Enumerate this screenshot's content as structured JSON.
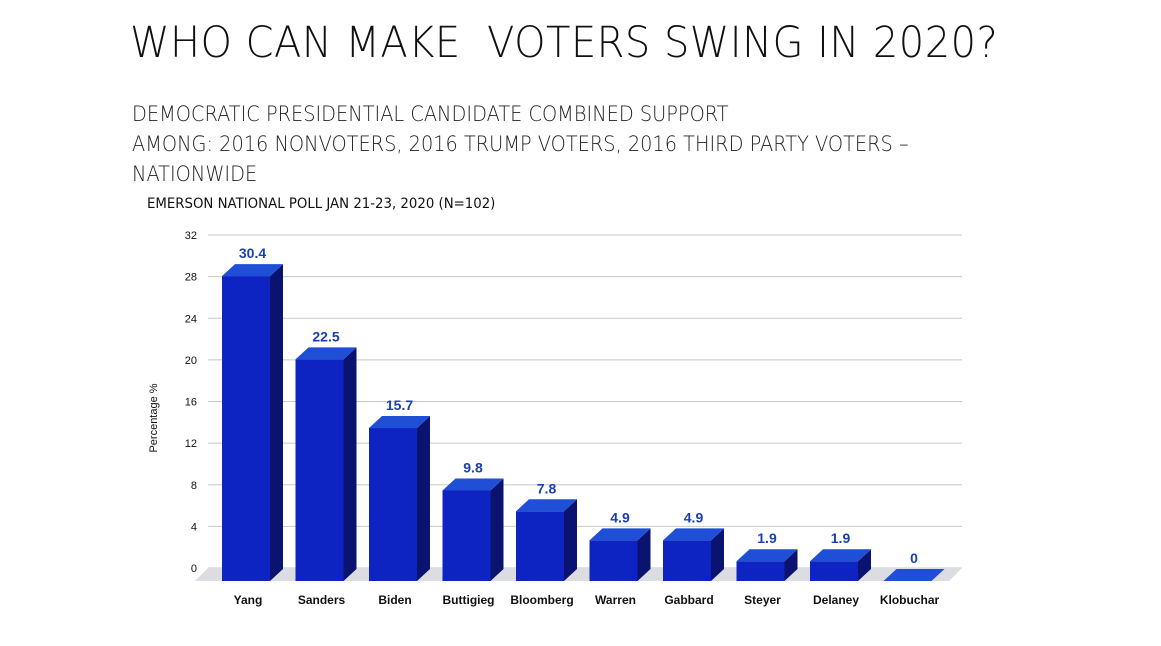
{
  "header": {
    "title": "WHO CAN MAKE  VOTERS SWING IN 2020?",
    "subtitle_lines": [
      "DEMOCRATIC PRESIDENTIAL CANDIDATE COMBINED SUPPORT",
      "AMONG: 2016 NONVOTERS, 2016 TRUMP VOTERS, 2016 THIRD PARTY VOTERS –",
      "NATIONWIDE"
    ],
    "source": "EMERSON NATIONAL POLL JAN 21-23, 2020 (N=102)"
  },
  "chart_data": {
    "type": "bar",
    "style": "3d",
    "categories": [
      "Yang",
      "Sanders",
      "Biden",
      "Buttigieg",
      "Bloomberg",
      "Warren",
      "Gabbard",
      "Steyer",
      "Delaney",
      "Klobuchar"
    ],
    "values": [
      30.4,
      22.5,
      15.7,
      9.8,
      7.8,
      4.9,
      4.9,
      1.9,
      1.9,
      0
    ],
    "bar_heights": [
      29.3,
      21.3,
      14.7,
      8.7,
      6.7,
      3.9,
      3.9,
      1.9,
      1.9,
      0
    ],
    "data_labels": [
      "30.4",
      "22.5",
      "15.7",
      "9.8",
      "7.8",
      "4.9",
      "4.9",
      "1.9",
      "1.9",
      "0"
    ],
    "ylabel": "Percentage %",
    "xlabel": "",
    "ylim": [
      0,
      32
    ],
    "yticks": [
      0,
      4,
      8,
      12,
      16,
      20,
      24,
      28,
      32
    ],
    "grid": true,
    "legend": "none",
    "colors": {
      "bar_front": "#0d23c2",
      "bar_top": "#1f4fd6",
      "bar_side": "#0a1470",
      "floor": "#dcdde2",
      "label": "#1a3fb4",
      "grid": "#c8c8c8"
    }
  }
}
